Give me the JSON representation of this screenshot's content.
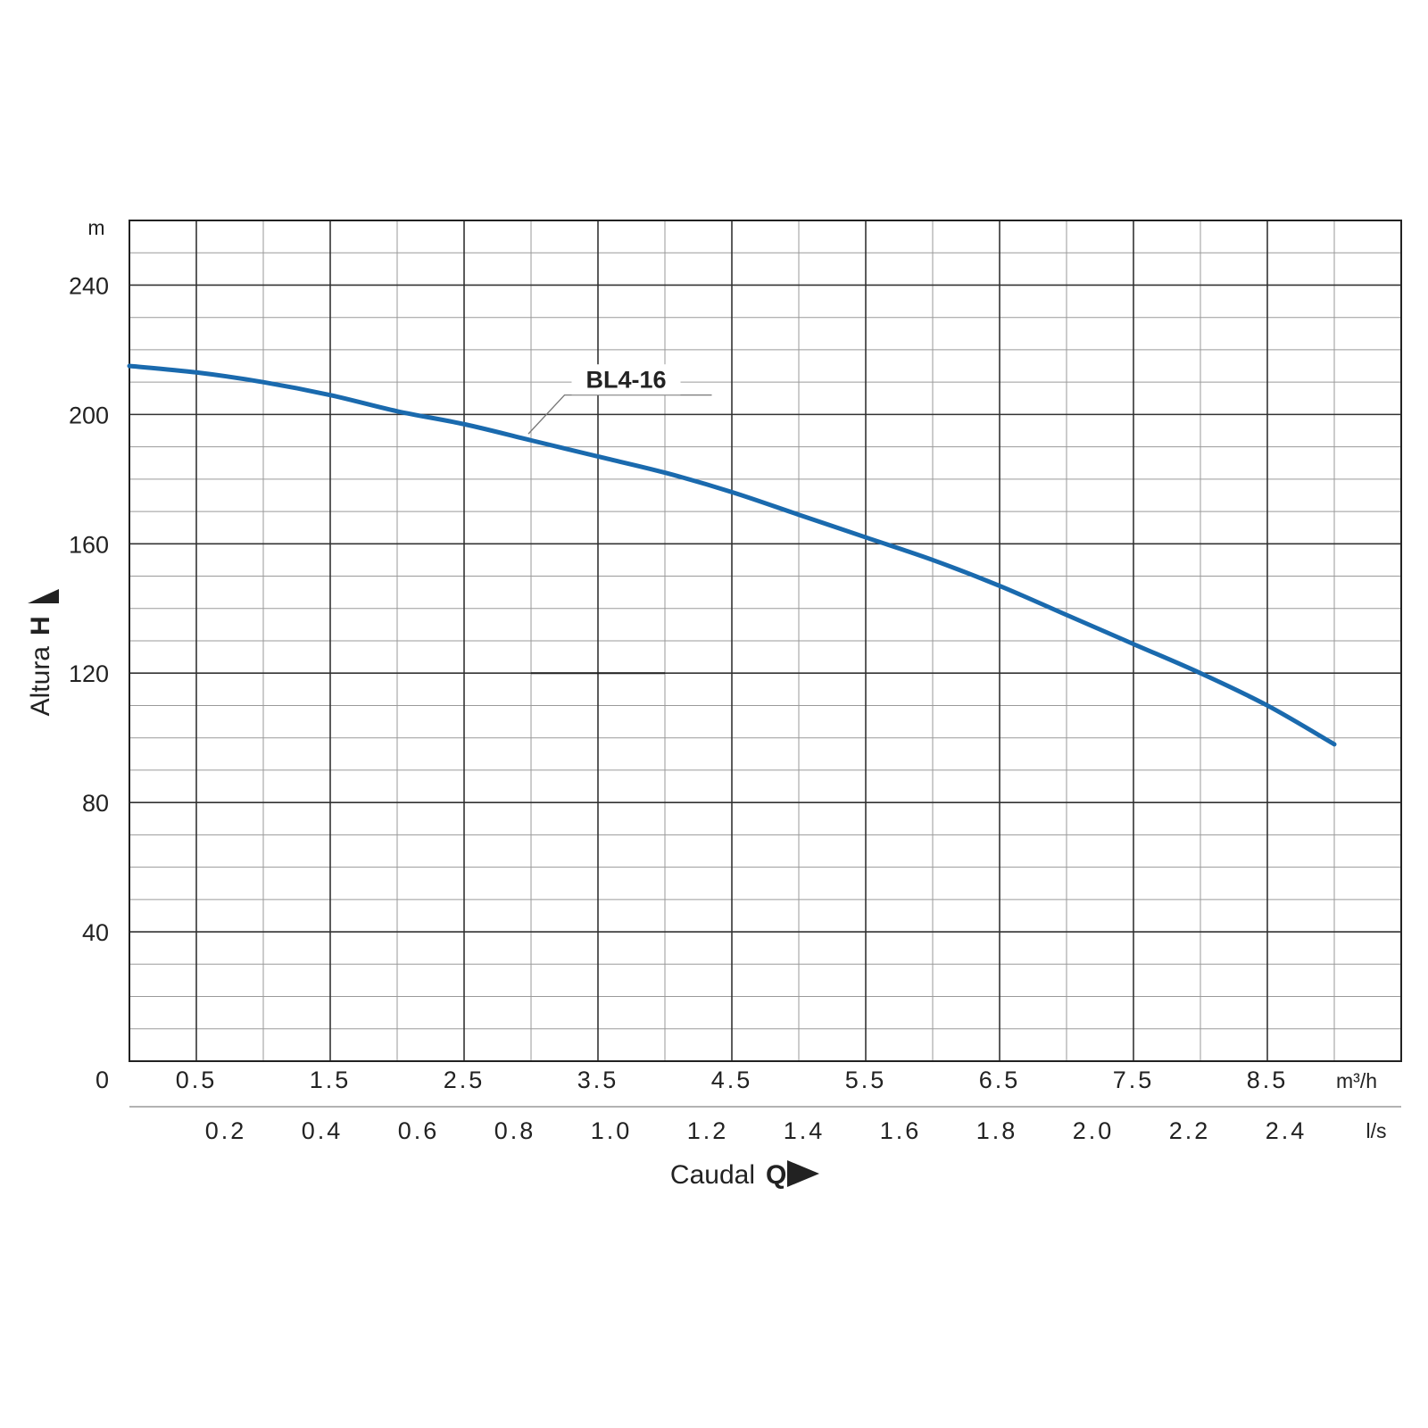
{
  "chart_data": {
    "type": "line",
    "xlabel": "Caudal",
    "xsymbol": "Q",
    "ylabel": "Altura",
    "ysymbol": "H",
    "y_unit": "m",
    "x_unit_primary": "m³/h",
    "x_unit_secondary": "l/s",
    "xlim": [
      0,
      9.5
    ],
    "ylim": [
      0,
      260
    ],
    "grid": true,
    "y_ticks": [
      0,
      40,
      80,
      120,
      160,
      200,
      240
    ],
    "y_tick_labels": [
      "0",
      "40",
      "80",
      "120",
      "160",
      "200",
      "240"
    ],
    "x_ticks_primary": [
      0.5,
      1.5,
      2.5,
      3.5,
      4.5,
      5.5,
      6.5,
      7.5,
      8.5
    ],
    "x_tick_labels_primary": [
      "0.5",
      "1.5",
      "2.5",
      "3.5",
      "4.5",
      "5.5",
      "6.5",
      "7.5",
      "8.5"
    ],
    "x_ticks_secondary": [
      0.2,
      0.4,
      0.6,
      0.8,
      1.0,
      1.2,
      1.4,
      1.6,
      1.8,
      2.0,
      2.2,
      2.4
    ],
    "x_tick_labels_secondary": [
      "0.2",
      "0.4",
      "0.6",
      "0.8",
      "1.0",
      "1.2",
      "1.4",
      "1.6",
      "1.8",
      "2.0",
      "2.2",
      "2.4"
    ],
    "series": [
      {
        "name": "BL4-16",
        "color": "#1a6aae",
        "x": [
          0.0,
          0.5,
          1.0,
          1.5,
          2.0,
          2.5,
          3.0,
          3.5,
          4.0,
          4.5,
          5.0,
          5.5,
          6.0,
          6.5,
          7.0,
          7.5,
          8.0,
          8.5,
          9.0
        ],
        "y": [
          215,
          213,
          210,
          206,
          201,
          197,
          192,
          187,
          182,
          176,
          169,
          162,
          155,
          147,
          138,
          129,
          120,
          110,
          98
        ]
      }
    ]
  }
}
